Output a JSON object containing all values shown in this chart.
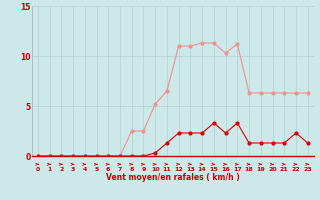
{
  "x": [
    0,
    1,
    2,
    3,
    4,
    5,
    6,
    7,
    8,
    9,
    10,
    11,
    12,
    13,
    14,
    15,
    16,
    17,
    18,
    19,
    20,
    21,
    22,
    23
  ],
  "y_rafales": [
    0,
    0,
    0,
    0,
    0,
    0,
    0,
    0,
    2.5,
    2.5,
    5.2,
    6.5,
    11.0,
    11.0,
    11.3,
    11.3,
    10.3,
    11.2,
    6.3,
    6.3,
    6.3,
    6.3,
    6.3,
    6.3
  ],
  "y_moyen": [
    0,
    0,
    0,
    0,
    0,
    0,
    0,
    0,
    0,
    0,
    0.3,
    1.3,
    2.3,
    2.3,
    2.3,
    3.3,
    2.3,
    3.3,
    1.3,
    1.3,
    1.3,
    1.3,
    2.3,
    1.3
  ],
  "xlabel": "Vent moyen/en rafales ( km/h )",
  "bg_color": "#cce8e8",
  "grid_color": "#b0d0d0",
  "line_color_rafales": "#f09090",
  "line_color_moyen": "#dd0000",
  "ylim": [
    0,
    15
  ],
  "yticks": [
    0,
    5,
    10,
    15
  ],
  "xlim": [
    -0.5,
    23.5
  ],
  "xticks": [
    0,
    1,
    2,
    3,
    4,
    5,
    6,
    7,
    8,
    9,
    10,
    11,
    12,
    13,
    14,
    15,
    16,
    17,
    18,
    19,
    20,
    21,
    22,
    23
  ]
}
